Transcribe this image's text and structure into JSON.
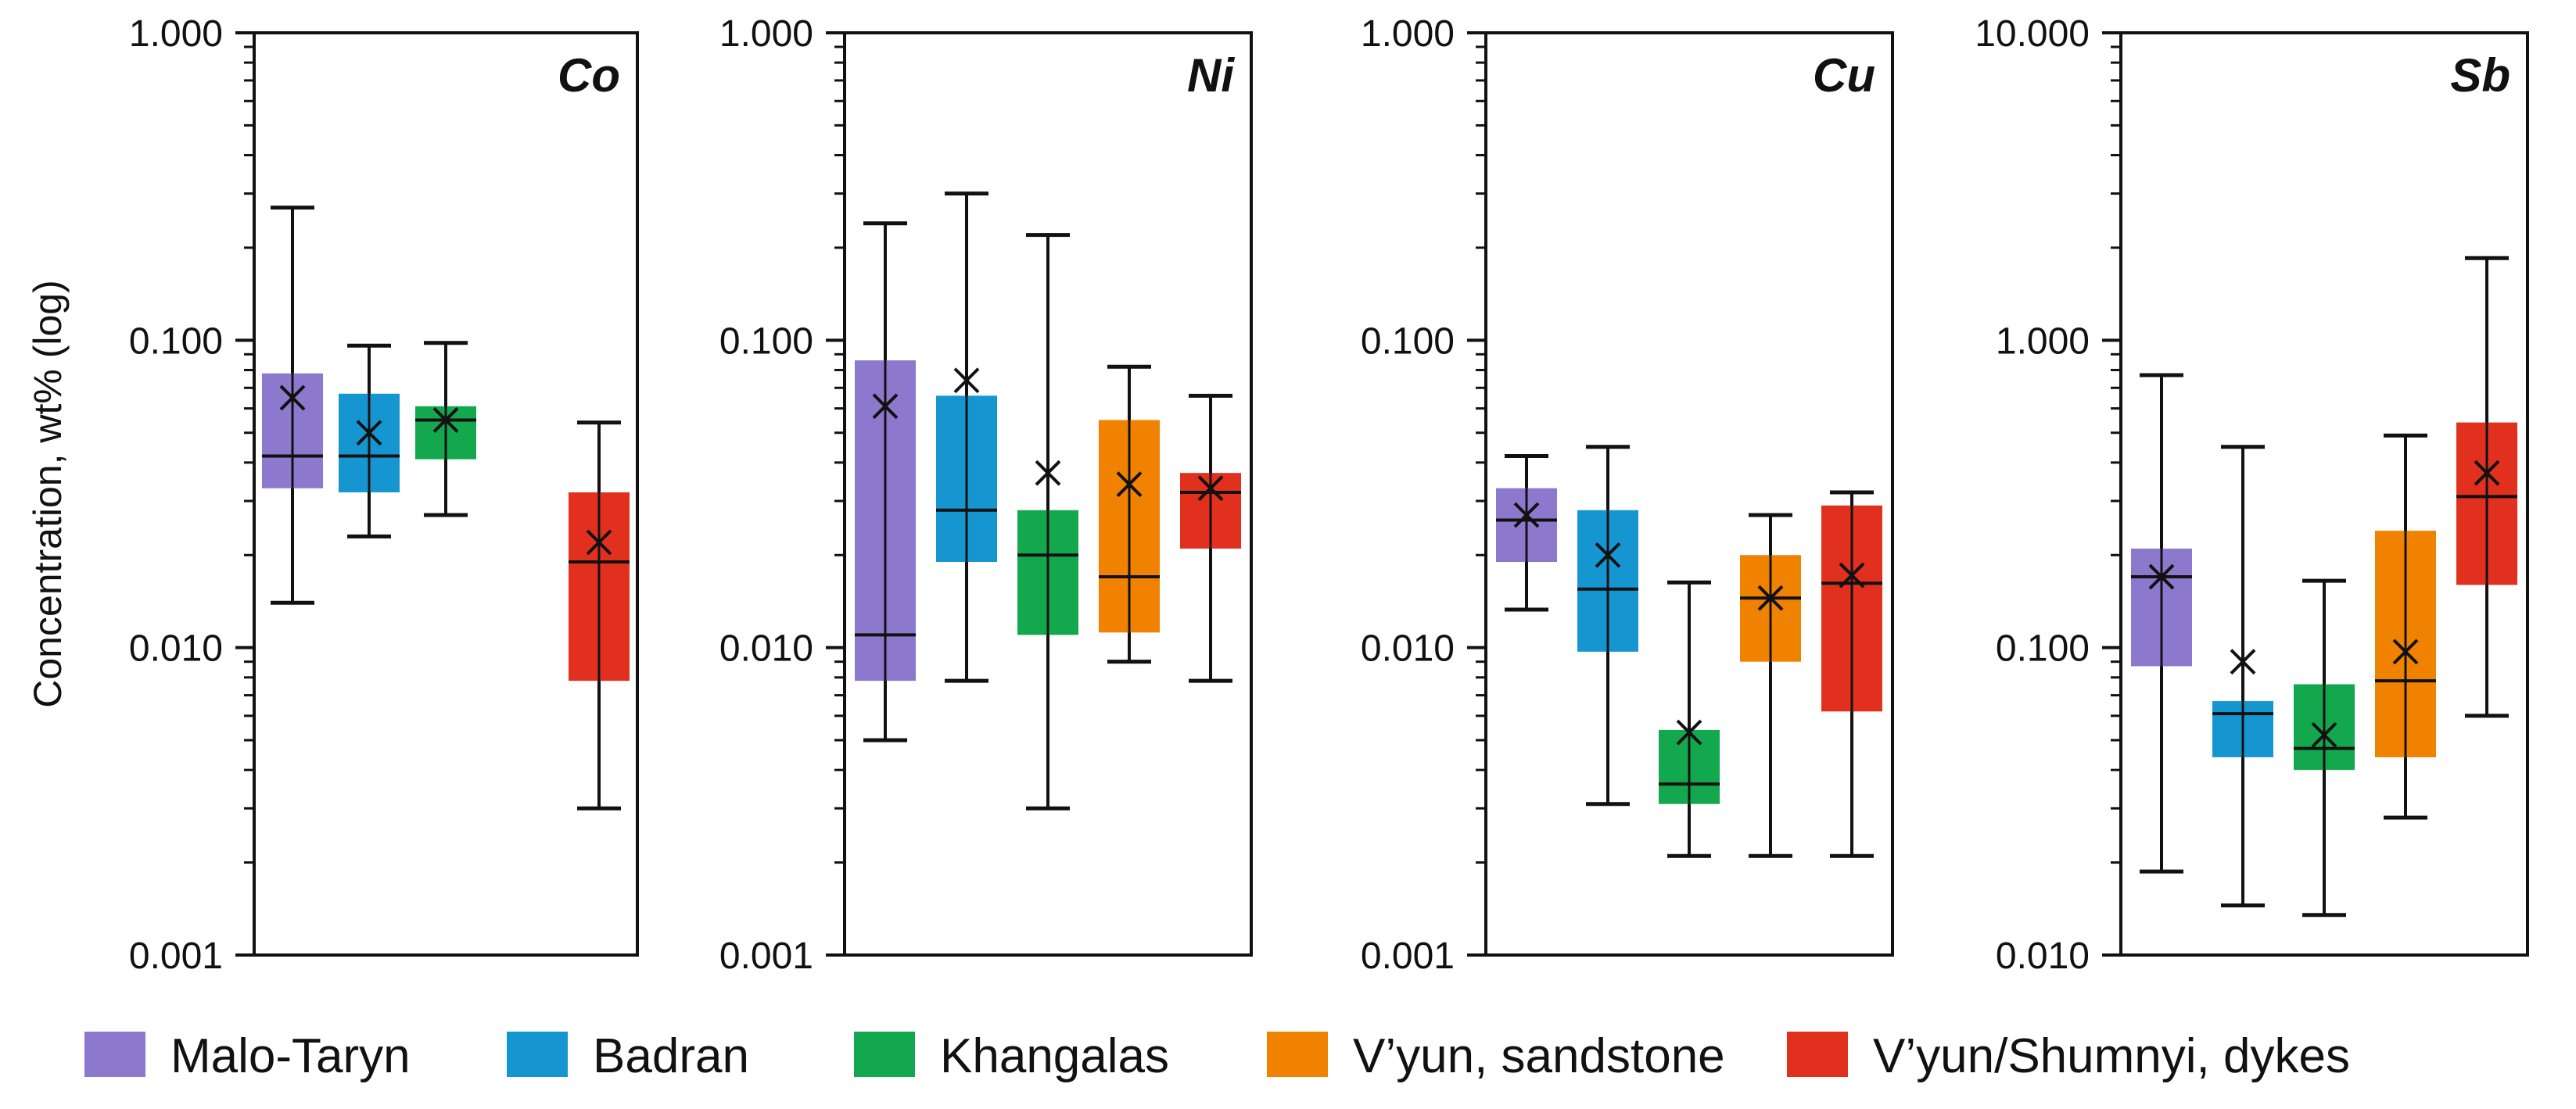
{
  "ylabel": "Concentration, wt% (log)",
  "legend": [
    {
      "name": "Malo-Taryn",
      "color": "#8c78cc"
    },
    {
      "name": "Badran",
      "color": "#1596d0"
    },
    {
      "name": "Khangalas",
      "color": "#14a84e"
    },
    {
      "name": "V’yun, sandstone",
      "color": "#f08200"
    },
    {
      "name": "V’yun/Shumnyi, dykes",
      "color": "#e2301e"
    }
  ],
  "chart_data": [
    {
      "type": "box",
      "title": "Co",
      "yscale": "log",
      "ylim": [
        0.001,
        1.0
      ],
      "yticks": [
        "0.001",
        "0.010",
        "0.100",
        "1.000"
      ],
      "boxes": [
        {
          "group": "Malo-Taryn",
          "min": 0.014,
          "q1": 0.033,
          "median": 0.042,
          "q3": 0.078,
          "max": 0.27,
          "mean": 0.065
        },
        {
          "group": "Badran",
          "min": 0.023,
          "q1": 0.032,
          "median": 0.042,
          "q3": 0.067,
          "max": 0.096,
          "mean": 0.05
        },
        {
          "group": "Khangalas",
          "min": 0.027,
          "q1": 0.041,
          "median": 0.055,
          "q3": 0.061,
          "max": 0.098,
          "mean": 0.055
        },
        {
          "group": "V’yun/Shumnyi, dykes",
          "min": 0.003,
          "q1": 0.0078,
          "median": 0.019,
          "q3": 0.032,
          "max": 0.054,
          "mean": 0.022
        }
      ]
    },
    {
      "type": "box",
      "title": "Ni",
      "yscale": "log",
      "ylim": [
        0.001,
        1.0
      ],
      "yticks": [
        "0.001",
        "0.010",
        "0.100",
        "1.000"
      ],
      "boxes": [
        {
          "group": "Malo-Taryn",
          "min": 0.005,
          "q1": 0.0078,
          "median": 0.011,
          "q3": 0.086,
          "max": 0.24,
          "mean": 0.061
        },
        {
          "group": "Badran",
          "min": 0.0078,
          "q1": 0.019,
          "median": 0.028,
          "q3": 0.066,
          "max": 0.3,
          "mean": 0.074
        },
        {
          "group": "Khangalas",
          "min": 0.003,
          "q1": 0.011,
          "median": 0.02,
          "q3": 0.028,
          "max": 0.22,
          "mean": 0.037
        },
        {
          "group": "V’yun, sandstone",
          "min": 0.009,
          "q1": 0.0112,
          "median": 0.017,
          "q3": 0.055,
          "max": 0.082,
          "mean": 0.034
        },
        {
          "group": "V’yun/Shumnyi, dykes",
          "min": 0.0078,
          "q1": 0.021,
          "median": 0.032,
          "q3": 0.037,
          "max": 0.066,
          "mean": 0.033
        }
      ]
    },
    {
      "type": "box",
      "title": "Cu",
      "yscale": "log",
      "ylim": [
        0.001,
        1.0
      ],
      "yticks": [
        "0.001",
        "0.010",
        "0.100",
        "1.000"
      ],
      "boxes": [
        {
          "group": "Malo-Taryn",
          "min": 0.0133,
          "q1": 0.019,
          "median": 0.026,
          "q3": 0.033,
          "max": 0.042,
          "mean": 0.027
        },
        {
          "group": "Badran",
          "min": 0.0031,
          "q1": 0.0097,
          "median": 0.0155,
          "q3": 0.028,
          "max": 0.045,
          "mean": 0.02
        },
        {
          "group": "Khangalas",
          "min": 0.0021,
          "q1": 0.0031,
          "median": 0.0036,
          "q3": 0.0054,
          "max": 0.0163,
          "mean": 0.0053
        },
        {
          "group": "V’yun, sandstone",
          "min": 0.0021,
          "q1": 0.009,
          "median": 0.0145,
          "q3": 0.02,
          "max": 0.027,
          "mean": 0.0145
        },
        {
          "group": "V’yun/Shumnyi, dykes",
          "min": 0.0021,
          "q1": 0.0062,
          "median": 0.0162,
          "q3": 0.029,
          "max": 0.032,
          "mean": 0.0172
        }
      ]
    },
    {
      "type": "box",
      "title": "Sb",
      "yscale": "log",
      "ylim": [
        0.01,
        10.0
      ],
      "yticks": [
        "0.010",
        "0.100",
        "1.000",
        "10.000"
      ],
      "boxes": [
        {
          "group": "Malo-Taryn",
          "min": 0.0187,
          "q1": 0.087,
          "median": 0.17,
          "q3": 0.21,
          "max": 0.77,
          "mean": 0.17
        },
        {
          "group": "Badran",
          "min": 0.0145,
          "q1": 0.044,
          "median": 0.061,
          "q3": 0.067,
          "max": 0.45,
          "mean": 0.09
        },
        {
          "group": "Khangalas",
          "min": 0.0135,
          "q1": 0.04,
          "median": 0.047,
          "q3": 0.076,
          "max": 0.165,
          "mean": 0.052
        },
        {
          "group": "V’yun, sandstone",
          "min": 0.028,
          "q1": 0.044,
          "median": 0.078,
          "q3": 0.24,
          "max": 0.49,
          "mean": 0.097
        },
        {
          "group": "V’yun/Shumnyi, dykes",
          "min": 0.06,
          "q1": 0.16,
          "median": 0.31,
          "q3": 0.54,
          "max": 1.85,
          "mean": 0.37
        }
      ]
    }
  ]
}
